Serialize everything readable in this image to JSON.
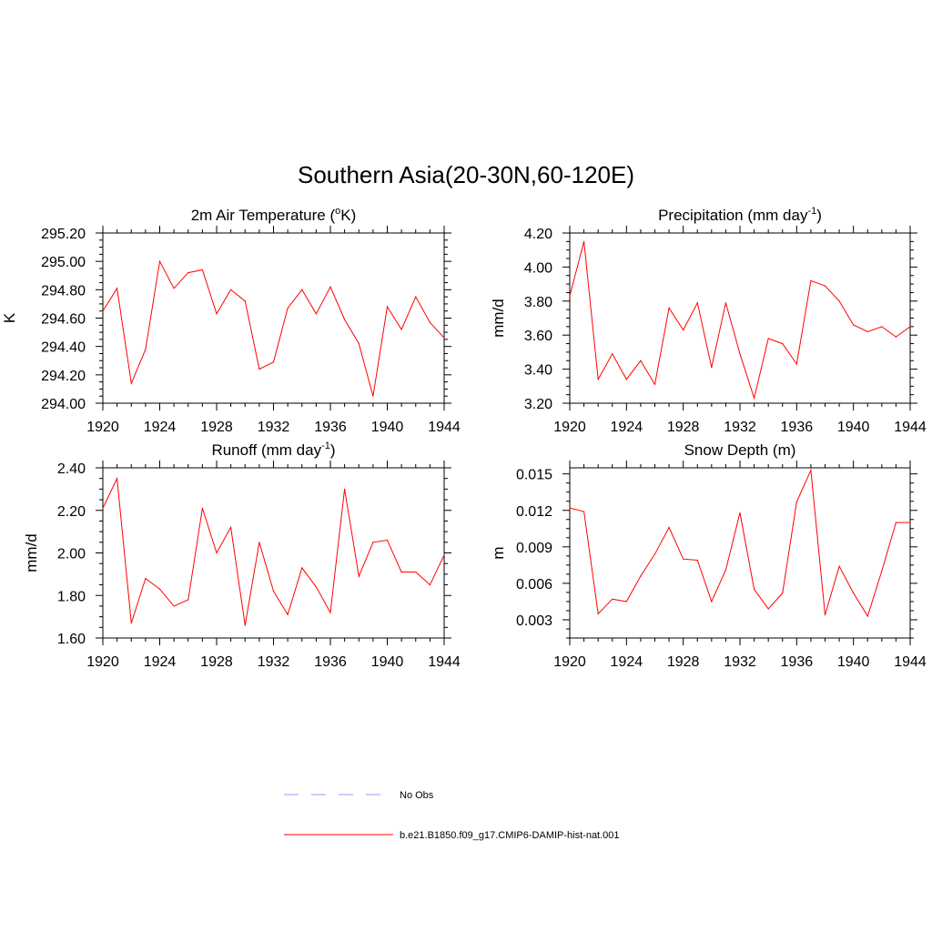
{
  "figure": {
    "title": "Southern Asia(20-30N,60-120E)"
  },
  "legend": {
    "position": "bottom-center",
    "items": [
      {
        "label": "No Obs",
        "color": "#9999ff",
        "style": "dashed"
      },
      {
        "label": "b.e21.B1850.f09_g17.CMIP6-DAMIP-hist-nat.001",
        "color": "#ff0000",
        "style": "solid"
      }
    ]
  },
  "chart_data": [
    {
      "type": "line",
      "title": "2m Air Temperature (",
      "title_sup": "o",
      "title_after": "K)",
      "ylabel": "K",
      "xlabel": "",
      "xlim": [
        1920,
        1944
      ],
      "ylim": [
        294.0,
        295.2
      ],
      "xticks": [
        "1920",
        "1924",
        "1928",
        "1932",
        "1936",
        "1940",
        "1944"
      ],
      "yticks": [
        "294.00",
        "294.20",
        "294.40",
        "294.60",
        "294.80",
        "295.00",
        "295.20"
      ],
      "series": [
        {
          "color": "#ff0000",
          "x": [
            1920,
            1921,
            1922,
            1923,
            1924,
            1925,
            1926,
            1927,
            1928,
            1929,
            1930,
            1931,
            1932,
            1933,
            1934,
            1935,
            1936,
            1937,
            1938,
            1939,
            1940,
            1941,
            1942,
            1943,
            1944
          ],
          "values": [
            294.65,
            294.81,
            294.14,
            294.38,
            295.0,
            294.81,
            294.92,
            294.94,
            294.63,
            294.8,
            294.72,
            294.24,
            294.29,
            294.67,
            294.8,
            294.63,
            294.82,
            294.59,
            294.42,
            294.05,
            294.68,
            294.52,
            294.75,
            294.57,
            294.46
          ]
        }
      ]
    },
    {
      "type": "line",
      "title": "Precipitation (mm day",
      "title_sup": "-1",
      "title_after": ")",
      "ylabel": "mm/d",
      "xlabel": "",
      "xlim": [
        1920,
        1944
      ],
      "ylim": [
        3.2,
        4.2
      ],
      "xticks": [
        "1920",
        "1924",
        "1928",
        "1932",
        "1936",
        "1940",
        "1944"
      ],
      "yticks": [
        "3.20",
        "3.40",
        "3.60",
        "3.80",
        "4.00",
        "4.20"
      ],
      "series": [
        {
          "color": "#ff0000",
          "x": [
            1920,
            1921,
            1922,
            1923,
            1924,
            1925,
            1926,
            1927,
            1928,
            1929,
            1930,
            1931,
            1932,
            1933,
            1934,
            1935,
            1936,
            1937,
            1938,
            1939,
            1940,
            1941,
            1942,
            1943,
            1944
          ],
          "values": [
            3.83,
            4.15,
            3.34,
            3.49,
            3.34,
            3.45,
            3.31,
            3.76,
            3.63,
            3.79,
            3.41,
            3.79,
            3.49,
            3.23,
            3.58,
            3.55,
            3.43,
            3.92,
            3.89,
            3.8,
            3.66,
            3.62,
            3.65,
            3.59,
            3.65
          ]
        }
      ]
    },
    {
      "type": "line",
      "title": "Runoff (mm day",
      "title_sup": "-1",
      "title_after": ")",
      "ylabel": "mm/d",
      "xlabel": "",
      "xlim": [
        1920,
        1944
      ],
      "ylim": [
        1.6,
        2.4
      ],
      "xticks": [
        "1920",
        "1924",
        "1928",
        "1932",
        "1936",
        "1940",
        "1944"
      ],
      "yticks": [
        "1.60",
        "1.80",
        "2.00",
        "2.20",
        "2.40"
      ],
      "series": [
        {
          "color": "#ff0000",
          "x": [
            1920,
            1921,
            1922,
            1923,
            1924,
            1925,
            1926,
            1927,
            1928,
            1929,
            1930,
            1931,
            1932,
            1933,
            1934,
            1935,
            1936,
            1937,
            1938,
            1939,
            1940,
            1941,
            1942,
            1943,
            1944
          ],
          "values": [
            2.21,
            2.35,
            1.67,
            1.88,
            1.83,
            1.75,
            1.78,
            2.21,
            2.0,
            2.12,
            1.66,
            2.05,
            1.82,
            1.71,
            1.93,
            1.84,
            1.72,
            2.3,
            1.89,
            2.05,
            2.06,
            1.91,
            1.91,
            1.85,
            1.99
          ]
        }
      ]
    },
    {
      "type": "line",
      "title": "Snow Depth (m)",
      "title_sup": "",
      "title_after": "",
      "ylabel": "m",
      "xlabel": "",
      "xlim": [
        1920,
        1944
      ],
      "ylim": [
        0.0015,
        0.0155
      ],
      "xticks": [
        "1920",
        "1924",
        "1928",
        "1932",
        "1936",
        "1940",
        "1944"
      ],
      "yticks": [
        "0.003",
        "0.006",
        "0.009",
        "0.012",
        "0.015"
      ],
      "ytick_values": [
        0.003,
        0.006,
        0.009,
        0.012,
        0.015
      ],
      "series": [
        {
          "color": "#ff0000",
          "x": [
            1920,
            1921,
            1922,
            1923,
            1924,
            1925,
            1926,
            1927,
            1928,
            1929,
            1930,
            1931,
            1932,
            1933,
            1934,
            1935,
            1936,
            1937,
            1938,
            1939,
            1940,
            1941,
            1942,
            1943,
            1944
          ],
          "values": [
            0.0122,
            0.0119,
            0.0035,
            0.0047,
            0.0045,
            0.0066,
            0.0084,
            0.0106,
            0.008,
            0.0079,
            0.0045,
            0.0071,
            0.0118,
            0.0055,
            0.0039,
            0.0052,
            0.0127,
            0.0153,
            0.0034,
            0.0074,
            0.0052,
            0.0033,
            0.007,
            0.011,
            0.011
          ]
        }
      ]
    }
  ]
}
